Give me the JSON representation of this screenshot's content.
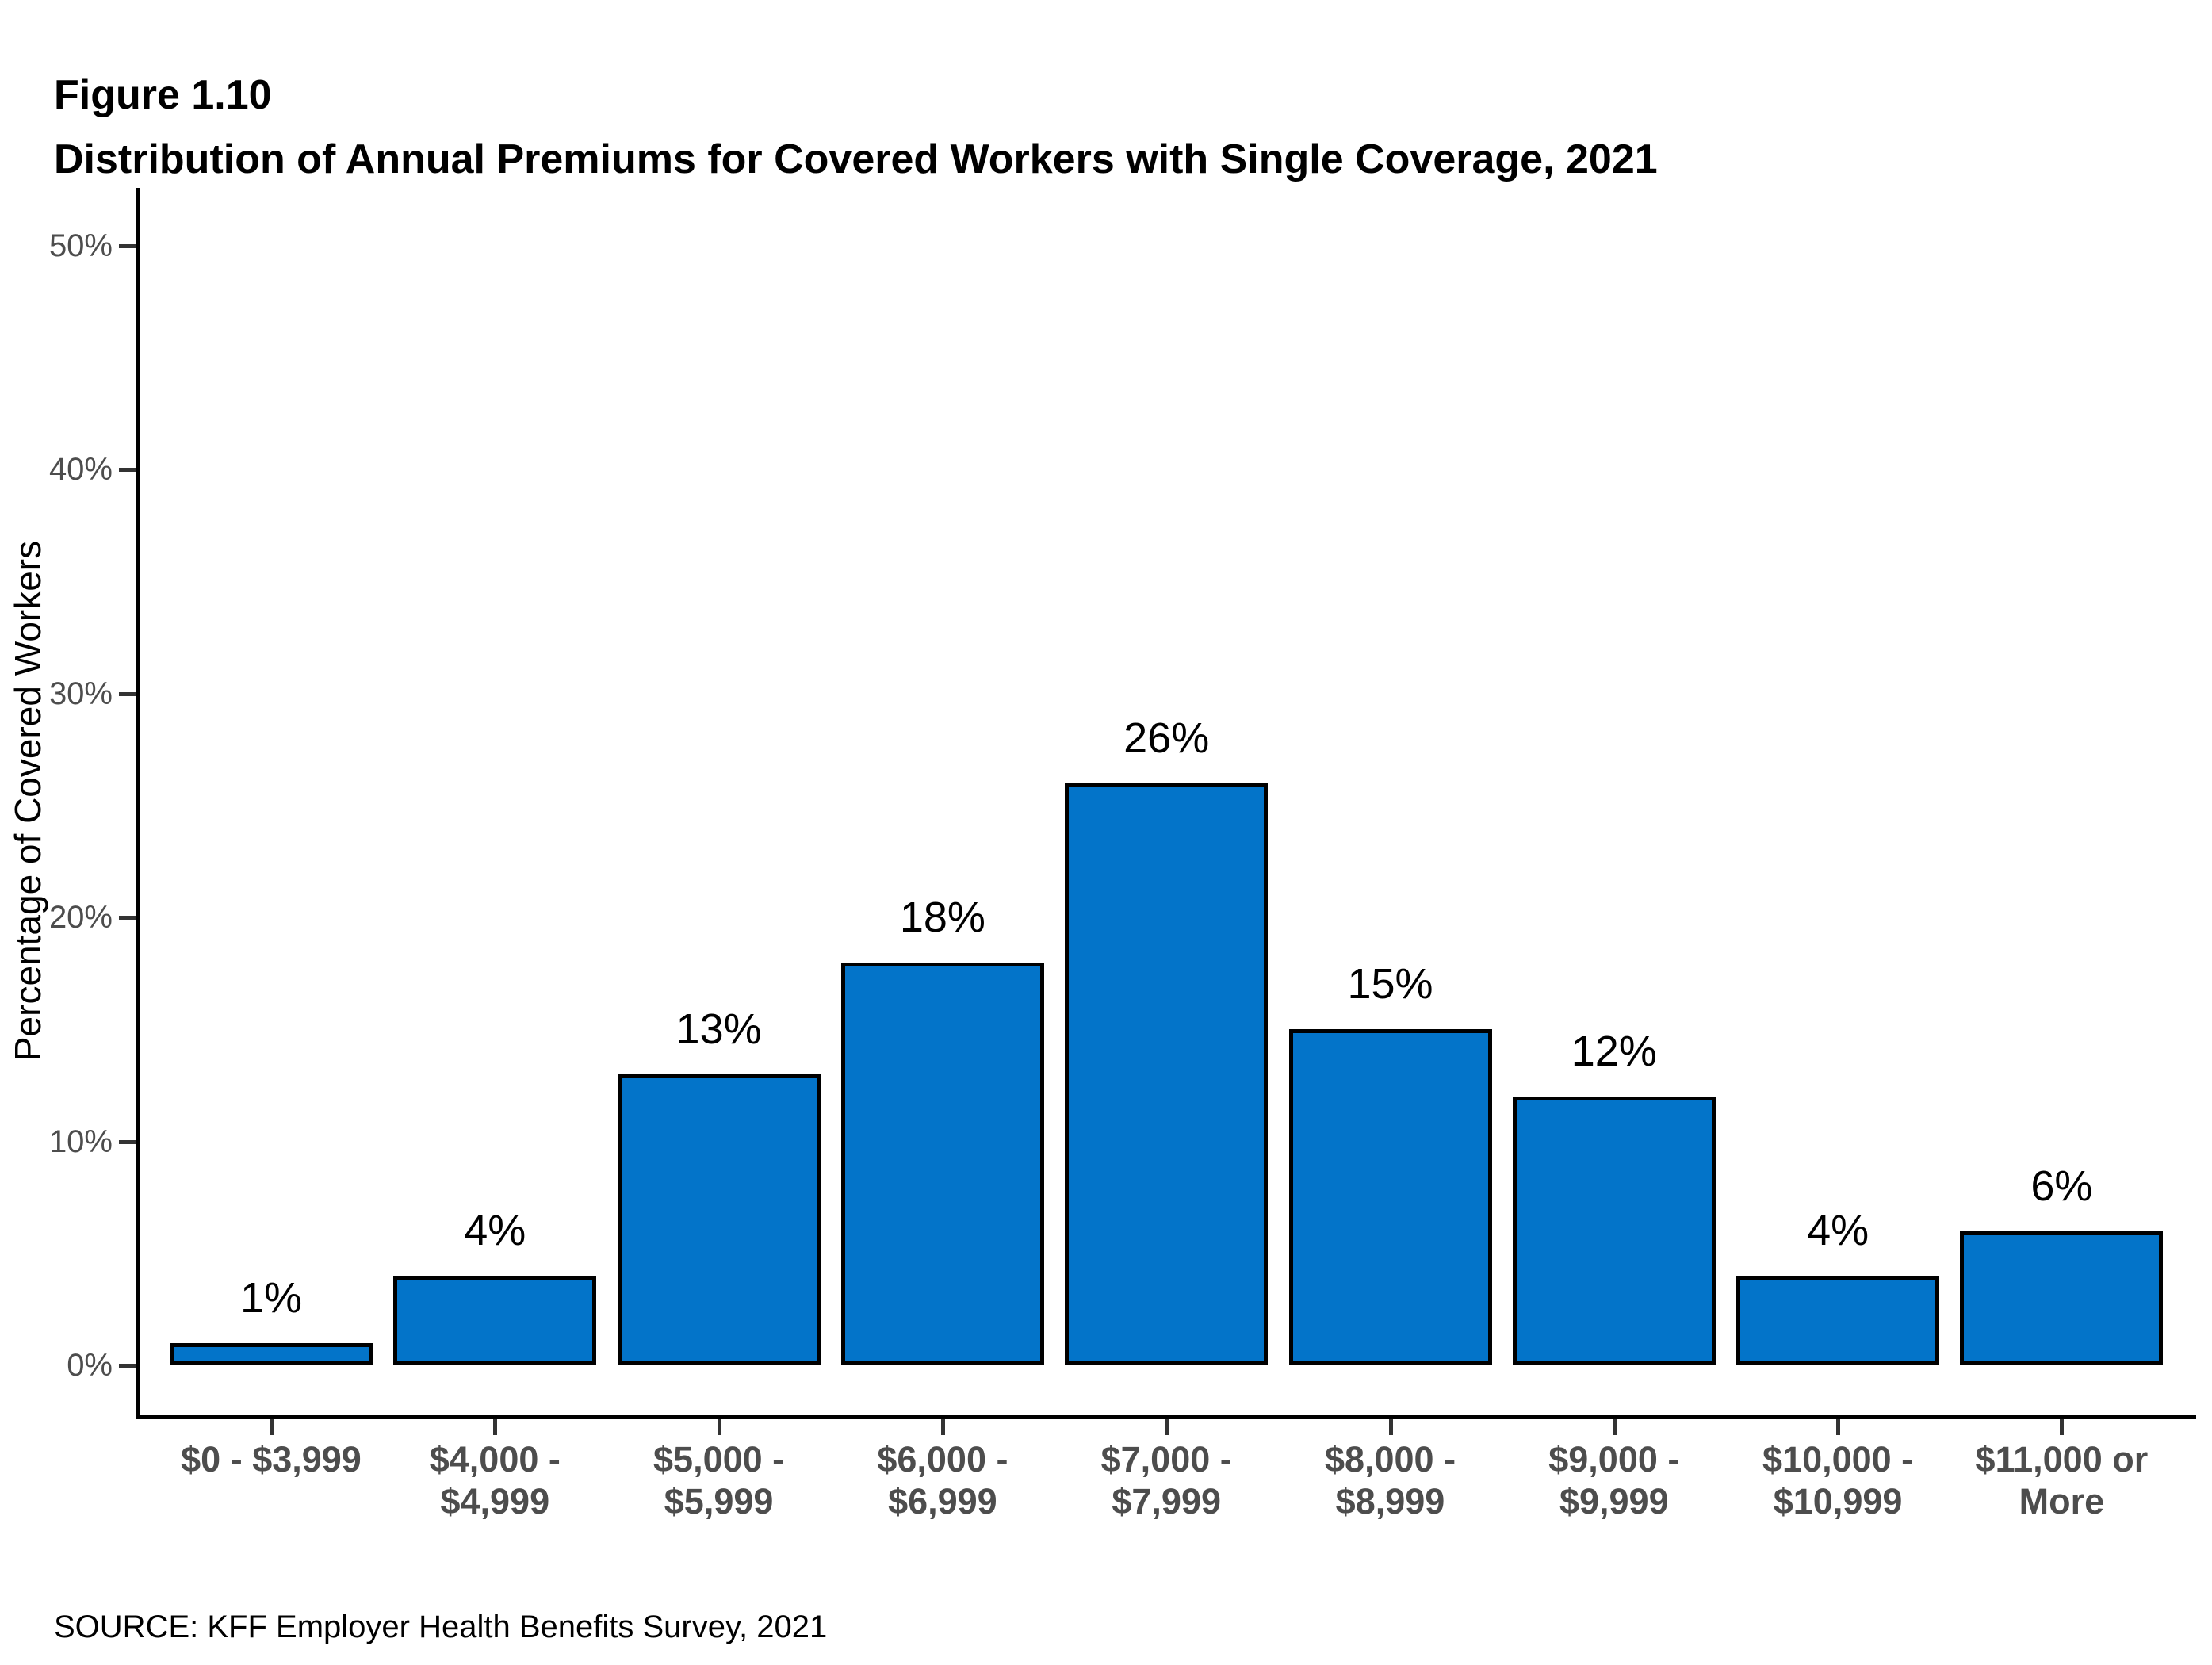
{
  "figure_label": "Figure 1.10",
  "title": "Distribution of Annual Premiums for Covered Workers with Single Coverage, 2021",
  "source": "SOURCE: KFF Employer Health Benefits Survey, 2021",
  "chart_data": {
    "type": "bar",
    "title": "Distribution of Annual Premiums for Covered Workers with Single Coverage, 2021",
    "categories": [
      "$0 - $3,999",
      "$4,000 - $4,999",
      "$5,000 - $5,999",
      "$6,000 - $6,999",
      "$7,000 - $7,999",
      "$8,000 - $8,999",
      "$9,000 - $9,999",
      "$10,000 - $10,999",
      "$11,000 or More"
    ],
    "categories_wrapped": [
      [
        "$0 - $3,999"
      ],
      [
        "$4,000 -",
        "$4,999"
      ],
      [
        "$5,000 -",
        "$5,999"
      ],
      [
        "$6,000 -",
        "$6,999"
      ],
      [
        "$7,000 -",
        "$7,999"
      ],
      [
        "$8,000 -",
        "$8,999"
      ],
      [
        "$9,000 -",
        "$9,999"
      ],
      [
        "$10,000 -",
        "$10,999"
      ],
      [
        "$11,000 or",
        "More"
      ]
    ],
    "values": [
      1,
      4,
      13,
      18,
      26,
      15,
      12,
      4,
      6
    ],
    "data_labels": [
      "1%",
      "4%",
      "13%",
      "18%",
      "26%",
      "15%",
      "12%",
      "4%",
      "6%"
    ],
    "xlabel": "",
    "ylabel": "Percentage of Covered Workers",
    "ylim": [
      0,
      50
    ],
    "ytick_values": [
      0,
      10,
      20,
      30,
      40,
      50
    ],
    "ytick_labels": [
      "0%",
      "10%",
      "20%",
      "30%",
      "40%",
      "50%"
    ],
    "grid": false,
    "legend": false,
    "colors": {
      "bar_fill": "#0374C9",
      "bar_border": "#000000",
      "axis_line": "#000000",
      "tick_mark": "#333333",
      "tick_label": "#4D4D4D",
      "text": "#000000"
    }
  }
}
